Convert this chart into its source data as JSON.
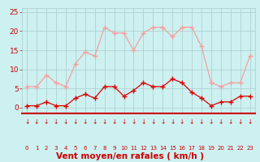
{
  "x": [
    0,
    1,
    2,
    3,
    4,
    5,
    6,
    7,
    8,
    9,
    10,
    11,
    12,
    13,
    14,
    15,
    16,
    17,
    18,
    19,
    20,
    21,
    22,
    23
  ],
  "rafales": [
    5.5,
    5.5,
    8.5,
    6.5,
    5.5,
    11.5,
    14.5,
    13.5,
    21,
    19.5,
    19.5,
    15,
    19.5,
    21,
    21,
    18.5,
    21,
    21,
    16,
    6.5,
    5.5,
    6.5,
    6.5,
    13.5
  ],
  "moyen": [
    0.5,
    0.5,
    1.5,
    0.5,
    0.5,
    2.5,
    3.5,
    2.5,
    5.5,
    5.5,
    3,
    4.5,
    6.5,
    5.5,
    5.5,
    7.5,
    6.5,
    4,
    2.5,
    0.5,
    1.5,
    1.5,
    3,
    3
  ],
  "color_rafales": "#f4a0a0",
  "color_moyen": "#dd0000",
  "bg_color": "#cdf0f0",
  "grid_color": "#aacccc",
  "xlabel": "Vent moyen/en rafales ( km/h )",
  "xlabel_color": "#cc0000",
  "yticks": [
    0,
    5,
    10,
    15,
    20,
    25
  ],
  "ylim": [
    -1.5,
    26
  ],
  "xlim": [
    -0.5,
    23.5
  ],
  "arrow_color": "#cc0000",
  "tick_color": "#cc0000",
  "spine_color": "#cc0000"
}
